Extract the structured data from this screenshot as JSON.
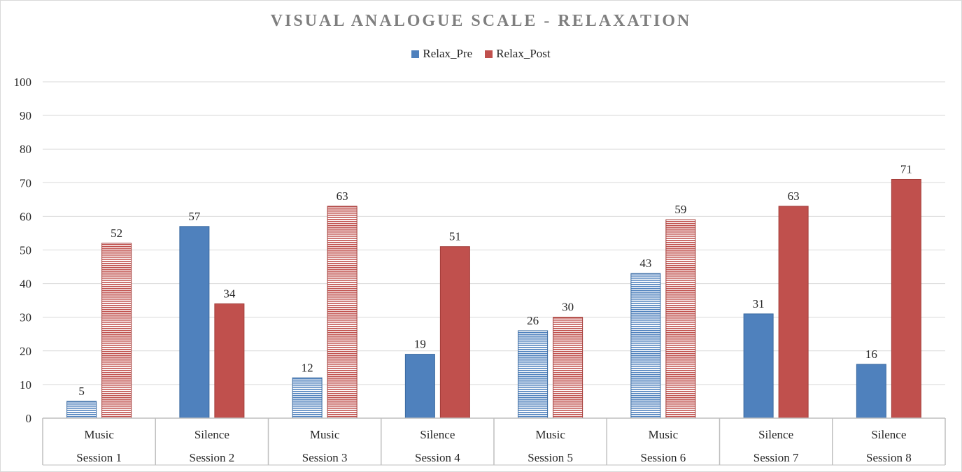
{
  "chart_data": {
    "type": "bar",
    "title": "VISUAL ANALOGUE SCALE - RELAXATION",
    "xlabel": "",
    "ylabel": "",
    "ylim": [
      0,
      100
    ],
    "yticks": [
      0,
      10,
      20,
      30,
      40,
      50,
      60,
      70,
      80,
      90,
      100
    ],
    "grid": true,
    "legend_position": "top-center",
    "categories": [
      {
        "condition": "Music",
        "session": "Session 1"
      },
      {
        "condition": "Silence",
        "session": "Session 2"
      },
      {
        "condition": "Music",
        "session": "Session 3"
      },
      {
        "condition": "Silence",
        "session": "Session 4"
      },
      {
        "condition": "Music",
        "session": "Session 5"
      },
      {
        "condition": "Music",
        "session": "Session 6"
      },
      {
        "condition": "Silence",
        "session": "Session 7"
      },
      {
        "condition": "Silence",
        "session": "Session 8"
      }
    ],
    "series": [
      {
        "name": "Relax_Pre",
        "color": "#4f81bd",
        "values": [
          5,
          57,
          12,
          19,
          26,
          43,
          31,
          16
        ]
      },
      {
        "name": "Relax_Post",
        "color": "#c0504d",
        "values": [
          52,
          34,
          63,
          51,
          30,
          59,
          63,
          71
        ]
      }
    ],
    "pattern_note": "Music bars drawn with horizontal stripe fill; Silence bars solid"
  },
  "colors": {
    "title": "#7f7f7f",
    "grid": "#d9d9d9",
    "axis_text": "#262626"
  }
}
